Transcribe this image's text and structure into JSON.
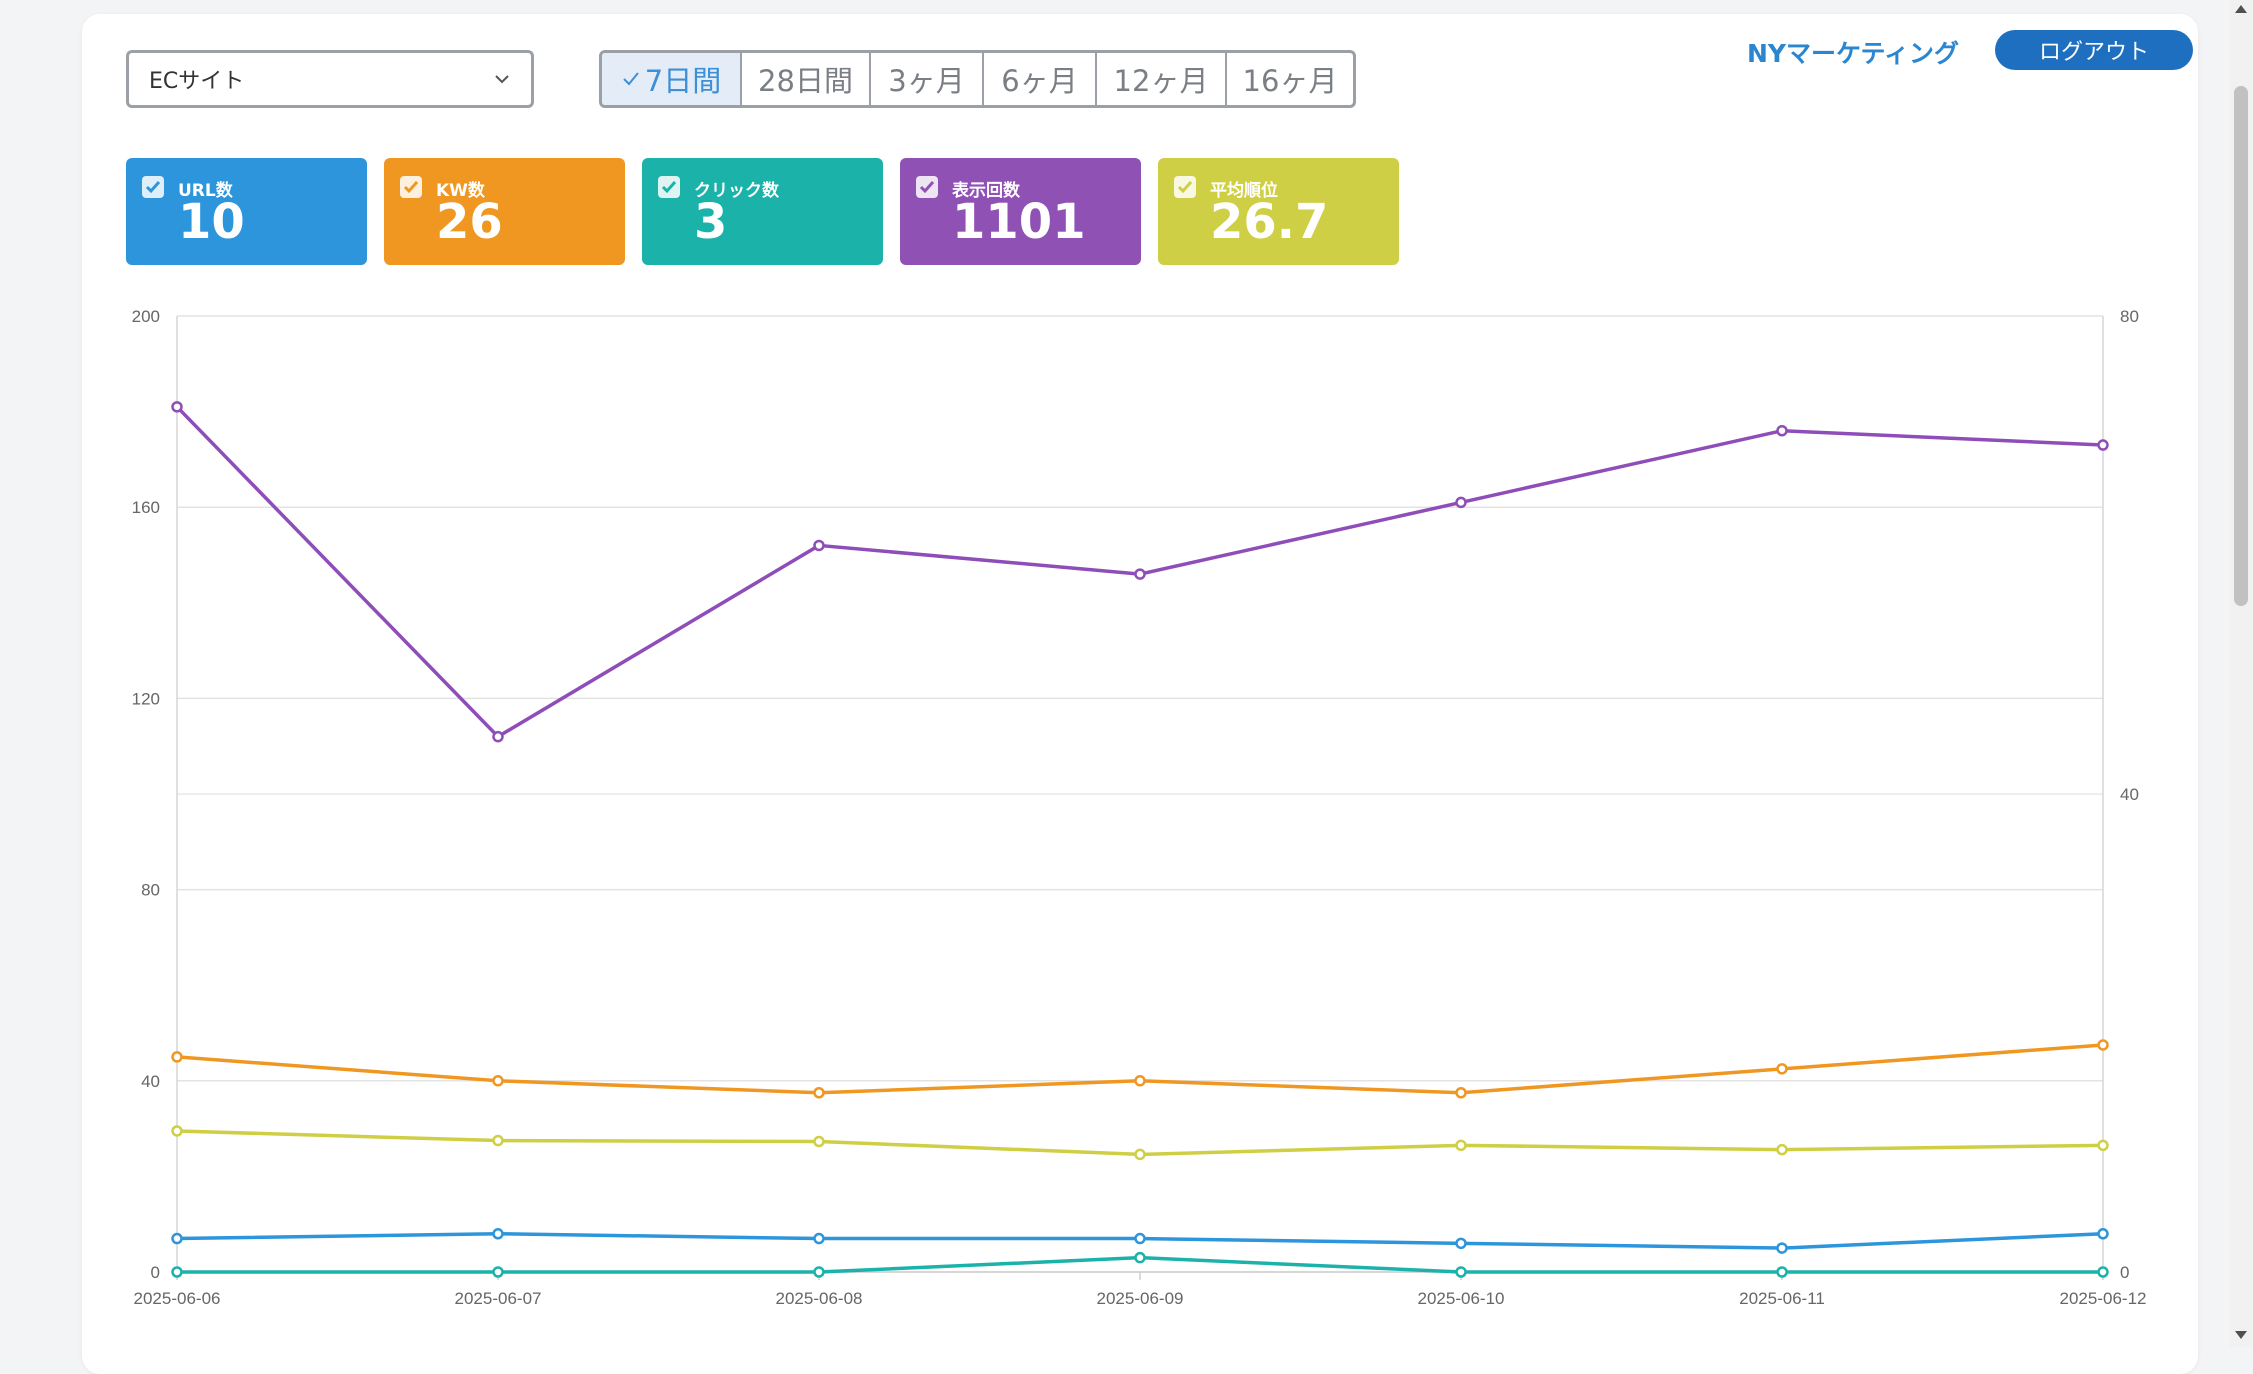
{
  "site_select": {
    "value": "ECサイト"
  },
  "periods": [
    {
      "label": "7日間",
      "active": true
    },
    {
      "label": "28日間",
      "active": false
    },
    {
      "label": "3ヶ月",
      "active": false
    },
    {
      "label": "6ヶ月",
      "active": false
    },
    {
      "label": "12ヶ月",
      "active": false
    },
    {
      "label": "16ヶ月",
      "active": false
    }
  ],
  "header": {
    "company": "NYマーケティング",
    "logout_label": "ログアウト"
  },
  "metrics": [
    {
      "label": "URL数",
      "value": "10",
      "color": "#2d95dc",
      "checked": true
    },
    {
      "label": "KW数",
      "value": "26",
      "color": "#f09722",
      "checked": true
    },
    {
      "label": "クリック数",
      "value": "3",
      "color": "#1bb2aa",
      "checked": true
    },
    {
      "label": "表示回数",
      "value": "1101",
      "color": "#9051b5",
      "checked": true
    },
    {
      "label": "平均順位",
      "value": "26.7",
      "color": "#cfcf45",
      "checked": true
    }
  ],
  "chart_data": {
    "type": "line",
    "x": [
      "2025-06-06",
      "2025-06-07",
      "2025-06-08",
      "2025-06-09",
      "2025-06-10",
      "2025-06-11",
      "2025-06-12"
    ],
    "ylim_left": [
      0,
      200
    ],
    "yticks_left": [
      0,
      40,
      80,
      120,
      160,
      200
    ],
    "ylim_right": [
      0,
      80
    ],
    "yticks_right": [
      0,
      40,
      80
    ],
    "grid": true,
    "series": [
      {
        "name": "表示回数",
        "color": "#8e4db8",
        "axis": "left",
        "values": [
          181,
          112,
          152,
          146,
          161,
          176,
          173
        ]
      },
      {
        "name": "KW数",
        "color": "#f09722",
        "axis": "left",
        "values": [
          45,
          40,
          37.5,
          40,
          37.5,
          42.5,
          47.5
        ]
      },
      {
        "name": "平均順位",
        "color": "#cfcf45",
        "axis": "left",
        "values": [
          29.5,
          27.5,
          27.3,
          24.6,
          26.5,
          25.6,
          26.5
        ]
      },
      {
        "name": "URL数",
        "color": "#2d95dc",
        "axis": "left",
        "values": [
          7,
          8,
          7,
          7,
          6,
          5,
          8
        ]
      },
      {
        "name": "クリック数",
        "color": "#1bb2aa",
        "axis": "left",
        "values": [
          0,
          0,
          0,
          3,
          0,
          0,
          0
        ]
      }
    ]
  }
}
